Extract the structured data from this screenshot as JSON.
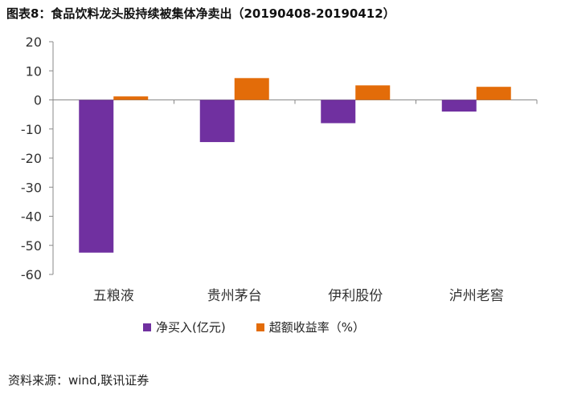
{
  "title": "图表8：食品饮料龙头股持续被集体净卖出（20190408-20190412）",
  "source": "资料来源：wind,联讯证券",
  "colors": {
    "series1": "#7030a0",
    "series2": "#e36c09",
    "axis": "#888888",
    "text": "#333333"
  },
  "chart_data": {
    "type": "bar",
    "title": "食品饮料龙头股持续被集体净卖出（20190408-20190412）",
    "categories": [
      "五粮液",
      "贵州茅台",
      "伊利股份",
      "泸州老窖"
    ],
    "series": [
      {
        "name": "净买入(亿元)",
        "values": [
          -52.5,
          -14.5,
          -8,
          -4
        ]
      },
      {
        "name": "超额收益率（%）",
        "values": [
          1.2,
          7.5,
          5,
          4.5
        ]
      }
    ],
    "yticks": [
      "20",
      "10",
      "0",
      "-10",
      "-20",
      "-30",
      "-40",
      "-50",
      "-60"
    ],
    "ylim": [
      -60,
      20
    ],
    "xlabel": "",
    "ylabel": "",
    "legend": "bottom"
  }
}
